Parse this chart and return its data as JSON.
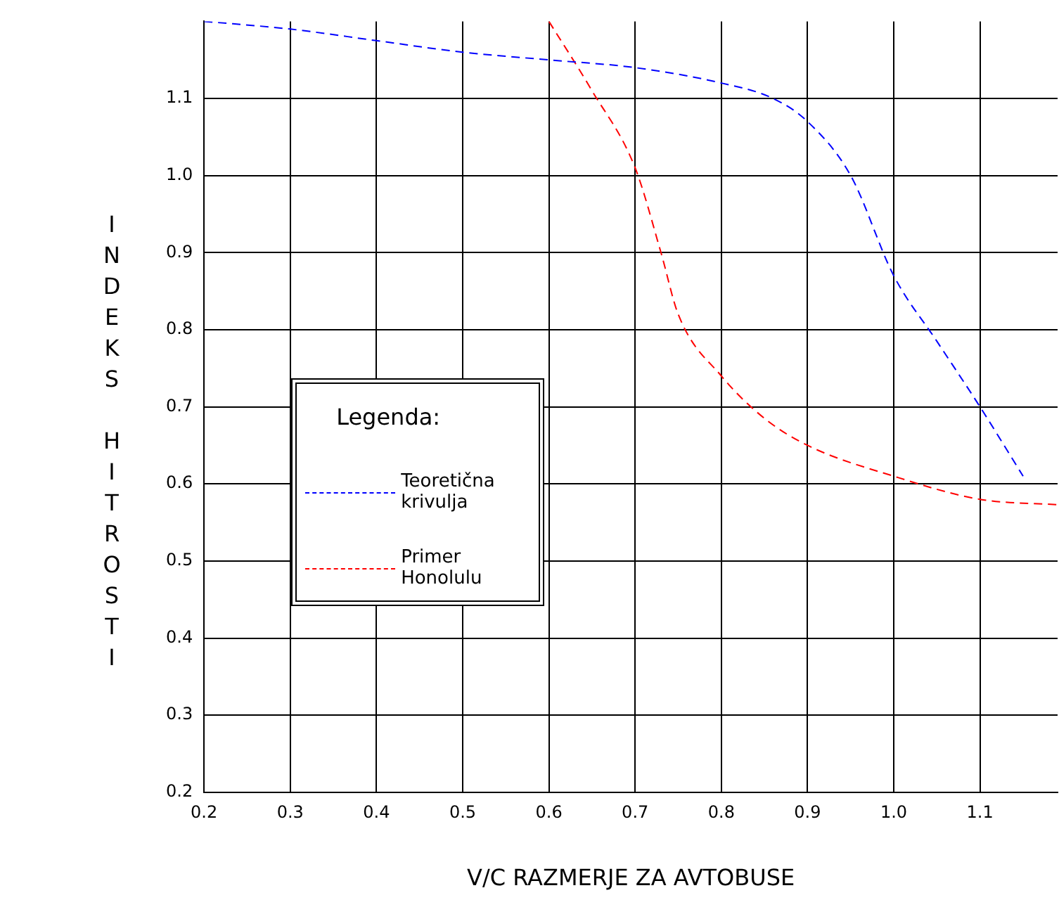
{
  "chart_data": {
    "type": "line",
    "xlabel": "V/C RAZMERJE ZA AVTOBUSE",
    "ylabel": "INDEKS HITROSTI",
    "legend_title": "Legenda:",
    "xlim": [
      0.2,
      1.19
    ],
    "ylim": [
      0.2,
      1.2
    ],
    "xticks": [
      0.2,
      0.3,
      0.4,
      0.5,
      0.6,
      0.7,
      0.8,
      0.9,
      {
        "value": 1,
        "label": "1.0"
      },
      1.1
    ],
    "yticks": [
      0.2,
      0.3,
      0.4,
      0.5,
      0.6,
      0.7,
      0.8,
      0.9,
      {
        "value": 1,
        "label": "1.0"
      },
      1.1
    ],
    "grid": true,
    "legend": "left",
    "marker": "none",
    "line_style": "dashed",
    "series": [
      {
        "name": "Teoretična krivulja",
        "color": "#0000ff",
        "x": [
          0.2,
          0.3,
          0.4,
          0.5,
          0.6,
          0.7,
          0.8,
          0.86,
          0.9,
          0.95,
          1.0,
          1.05,
          1.1,
          1.15
        ],
        "values": [
          1.2,
          1.19,
          1.175,
          1.16,
          1.15,
          1.14,
          1.12,
          1.1,
          1.07,
          1.0,
          0.87,
          0.785,
          0.7,
          0.61
        ]
      },
      {
        "name": "Primer Honolulu",
        "color": "#ff0000",
        "x": [
          0.6,
          0.65,
          0.7,
          0.73,
          0.75,
          0.8,
          0.85,
          0.9,
          1.0,
          1.1,
          1.19
        ],
        "values": [
          1.2,
          1.11,
          1.01,
          0.9,
          0.82,
          0.74,
          0.685,
          0.65,
          0.61,
          0.58,
          0.573
        ]
      }
    ]
  }
}
